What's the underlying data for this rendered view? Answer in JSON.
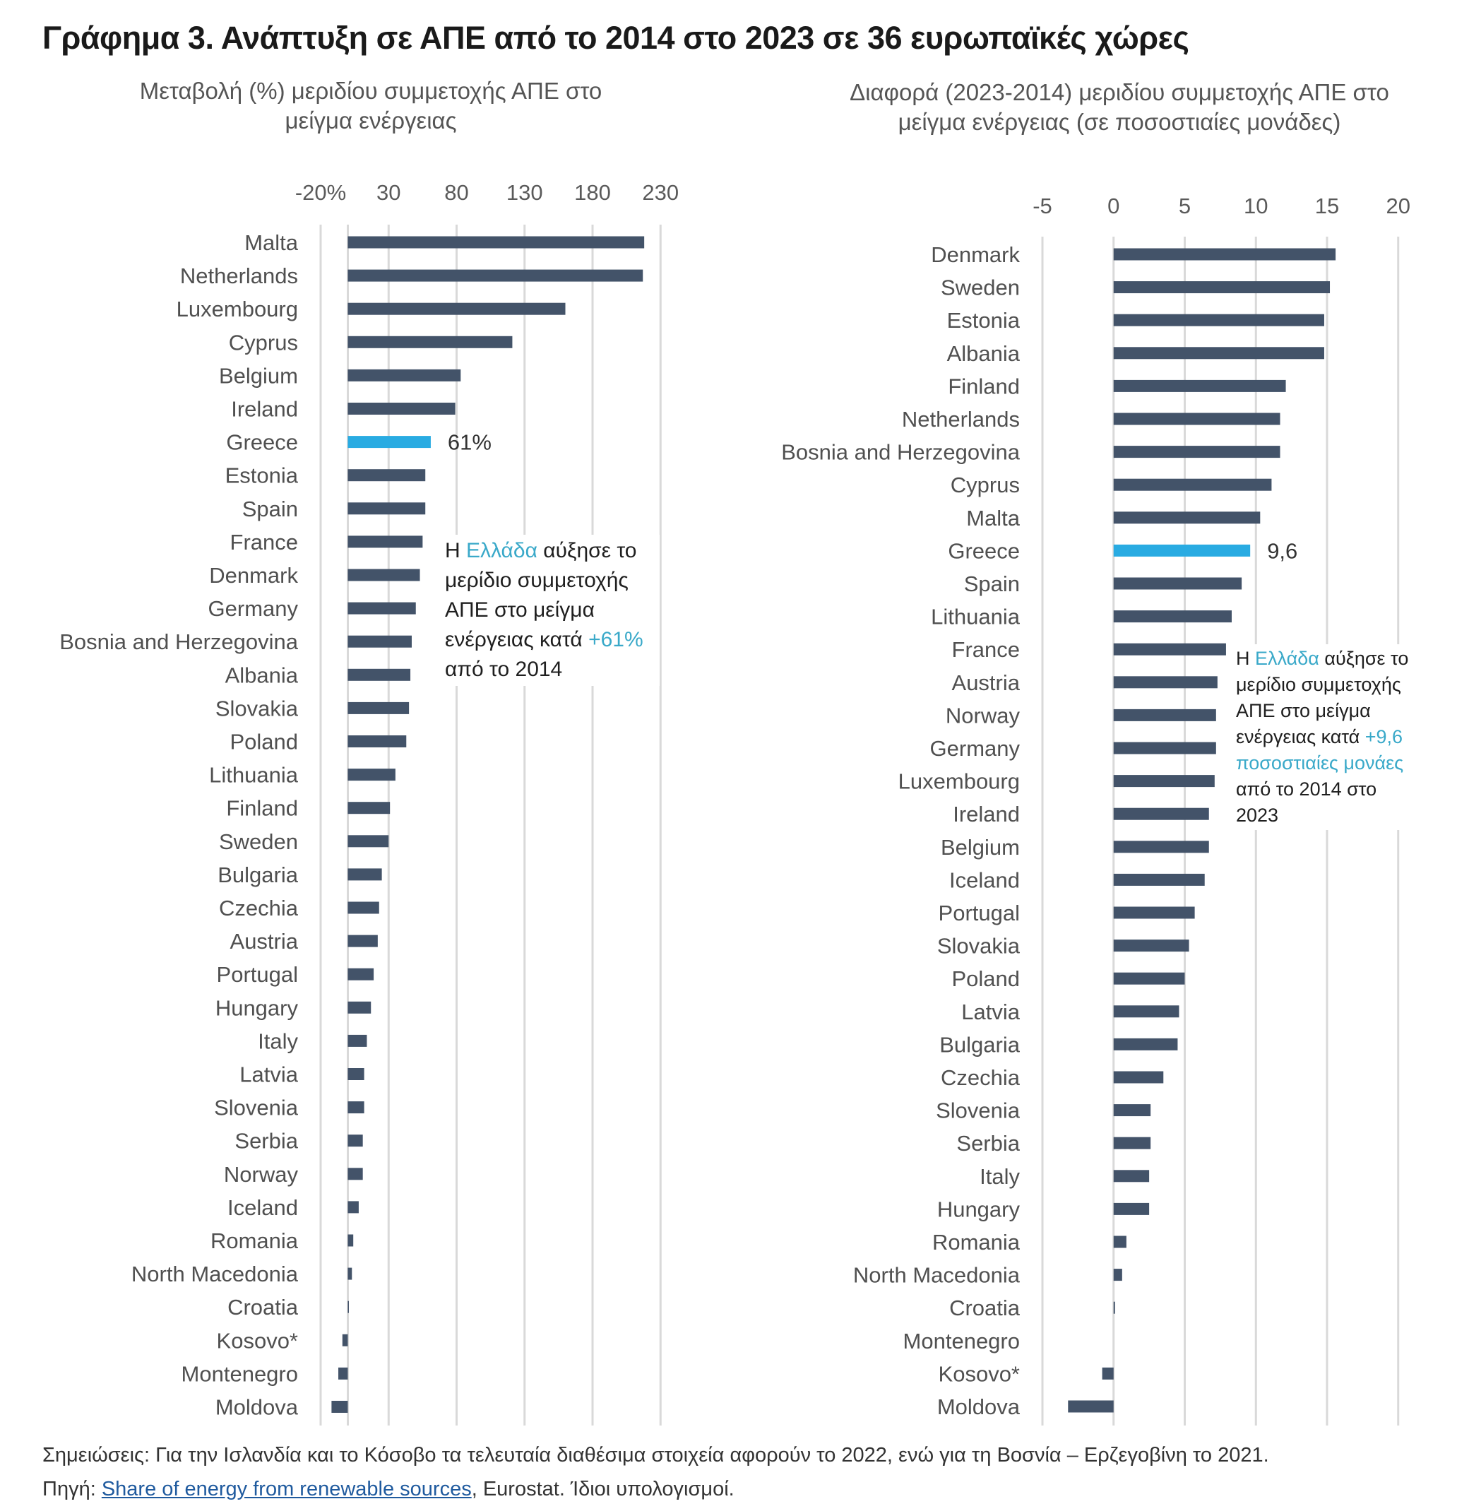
{
  "title": "Γράφημα 3. Ανάπτυξη σε ΑΠΕ από το 2014 στο 2023 σε 36 ευρωπαϊκές χώρες",
  "colors": {
    "bar": "#435369",
    "highlight": "#29abe2",
    "grid": "#d9d9d9",
    "accent_text": "#3aa9c9",
    "link": "#1f5a9e"
  },
  "notes": {
    "left": {
      "pre": "Η ",
      "hl1": "Ελλάδα",
      "mid": " αύξησε το μερίδιο συμμετοχής ΑΠΕ στο μείγμα ενέργειας κατά ",
      "hl2": "+61%",
      "post": " από το 2014"
    },
    "right": {
      "pre": "Η ",
      "hl1": "Ελλάδα",
      "mid": " αύξησε το μερίδιο συμμετοχής ΑΠΕ στο μείγμα ενέργειας κατά ",
      "hl2": "+9,6 ποσοστιαίες μονάες",
      "post": " από το 2014 στο 2023"
    }
  },
  "footer": {
    "notes": "Σημειώσεις: Για την Ισλανδία και το Κόσοβο τα τελευταία διαθέσιμα στοιχεία αφορούν το 2022, ενώ για τη Βοσνία – Ερζεγοβίνη το 2021.",
    "source_prefix": "Πηγή: ",
    "source_link": "Share of energy from renewable sources",
    "source_suffix": ", Eurostat. Ίδιοι υπολογισμοί."
  },
  "chart_data": [
    {
      "type": "bar",
      "orientation": "horizontal",
      "title": "Μεταβολή (%) μεριδίου συμμετοχής ΑΠΕ στο μείγμα ενέργειας",
      "xlabel": "",
      "ylabel": "",
      "xlim": [
        -20,
        230
      ],
      "ticks": [
        -20,
        30,
        80,
        130,
        180,
        230
      ],
      "tick_labels": [
        "-20%",
        "30",
        "80",
        "130",
        "180",
        "230"
      ],
      "grid": true,
      "highlight": "Greece",
      "data_label": {
        "category": "Greece",
        "text": "61%"
      },
      "categories": [
        "Malta",
        "Netherlands",
        "Luxembourg",
        "Cyprus",
        "Belgium",
        "Ireland",
        "Greece",
        "Estonia",
        "Spain",
        "France",
        "Denmark",
        "Germany",
        "Bosnia and Herzegovina",
        "Albania",
        "Slovakia",
        "Poland",
        "Lithuania",
        "Finland",
        "Sweden",
        "Bulgaria",
        "Czechia",
        "Austria",
        "Portugal",
        "Hungary",
        "Italy",
        "Latvia",
        "Slovenia",
        "Serbia",
        "Norway",
        "Iceland",
        "Romania",
        "North Macedonia",
        "Croatia",
        "Kosovo*",
        "Montenegro",
        "Moldova"
      ],
      "values": [
        218,
        217,
        160,
        121,
        83,
        79,
        61,
        57,
        57,
        55,
        53,
        50,
        47,
        46,
        45,
        43,
        35,
        31,
        30,
        25,
        23,
        22,
        19,
        17,
        14,
        12,
        12,
        11,
        11,
        8,
        4,
        3,
        0.5,
        -4,
        -7,
        -12
      ]
    },
    {
      "type": "bar",
      "orientation": "horizontal",
      "title": "Διαφορά (2023-2014) μεριδίου συμμετοχής ΑΠΕ στο μείγμα ενέργειας (σε ποσοστιαίες μονάδες)",
      "xlabel": "",
      "ylabel": "",
      "xlim": [
        -5,
        20
      ],
      "ticks": [
        -5,
        0,
        5,
        10,
        15,
        20
      ],
      "tick_labels": [
        "-5",
        "0",
        "5",
        "10",
        "15",
        "20"
      ],
      "grid": true,
      "highlight": "Greece",
      "data_label": {
        "category": "Greece",
        "text": "9,6"
      },
      "categories": [
        "Denmark",
        "Sweden",
        "Estonia",
        "Albania",
        "Finland",
        "Netherlands",
        "Bosnia and Herzegovina",
        "Cyprus",
        "Malta",
        "Greece",
        "Spain",
        "Lithuania",
        "France",
        "Austria",
        "Norway",
        "Germany",
        "Luxembourg",
        "Ireland",
        "Belgium",
        "Iceland",
        "Portugal",
        "Slovakia",
        "Poland",
        "Latvia",
        "Bulgaria",
        "Czechia",
        "Slovenia",
        "Serbia",
        "Italy",
        "Hungary",
        "Romania",
        "North Macedonia",
        "Croatia",
        "Montenegro",
        "Kosovo*",
        "Moldova"
      ],
      "values": [
        15.6,
        15.2,
        14.8,
        14.8,
        12.1,
        11.7,
        11.7,
        11.1,
        10.3,
        9.6,
        9.0,
        8.3,
        7.9,
        7.3,
        7.2,
        7.2,
        7.1,
        6.7,
        6.7,
        6.4,
        5.7,
        5.3,
        5.0,
        4.6,
        4.5,
        3.5,
        2.6,
        2.6,
        2.5,
        2.5,
        0.9,
        0.6,
        0.1,
        0,
        -0.8,
        -3.2
      ]
    }
  ]
}
